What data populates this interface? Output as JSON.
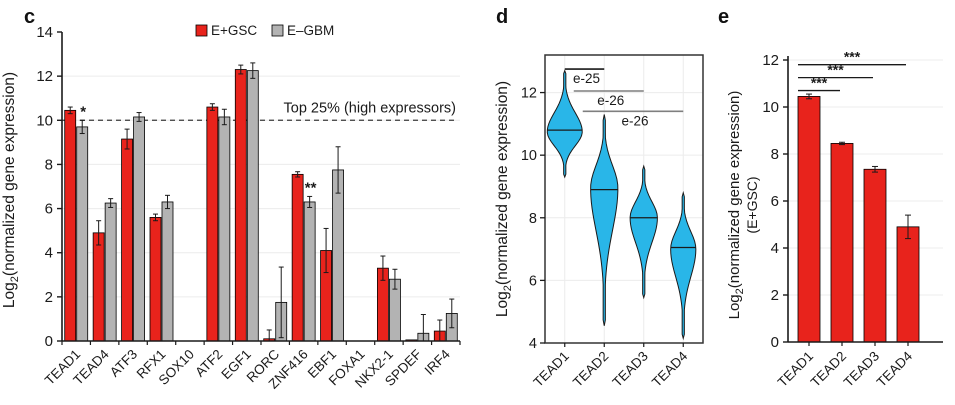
{
  "panels": {
    "c": {
      "label": "c"
    },
    "d": {
      "label": "d"
    },
    "e": {
      "label": "e"
    }
  },
  "colors": {
    "bar_red": "#e8231c",
    "bar_gray": "#b3b3b3",
    "violin_blue": "#29b6e8",
    "grid": "#ececec",
    "axis": "#1a1a1a",
    "sig_gray": "#7f7f7f",
    "threshold_line": "#3a3a3a"
  },
  "chart_data": [
    {
      "panel": "c",
      "type": "bar",
      "ylabel": {
        "pre": "Log",
        "sub": "2",
        "post": "(normalized gene expression)"
      },
      "ylim": [
        0,
        14
      ],
      "yticks": [
        0,
        2,
        4,
        6,
        8,
        10,
        12,
        14
      ],
      "grid": true,
      "legend": {
        "position": "top",
        "entries": [
          {
            "name": "E+GSC",
            "color": "bar_red"
          },
          {
            "name": "E–GBM",
            "color": "bar_gray"
          }
        ]
      },
      "threshold": {
        "value": 10,
        "label": "Top 25% (high expressors)"
      },
      "categories": [
        "TEAD1",
        "TEAD4",
        "ATF3",
        "RFX1",
        "SOX10",
        "ATF2",
        "EGF1",
        "RORC",
        "ZNF416",
        "EBF1",
        "FOXA1",
        "NKX2-1",
        "SPDEF",
        "IRF4"
      ],
      "series": [
        {
          "name": "E+GSC",
          "color": "bar_red",
          "values": [
            10.45,
            4.9,
            9.15,
            5.6,
            0,
            10.6,
            12.3,
            0.1,
            7.55,
            4.1,
            0,
            3.3,
            0.05,
            0.45
          ],
          "errors": [
            0.15,
            0.55,
            0.45,
            0.15,
            0,
            0.15,
            0.2,
            0.4,
            0.12,
            1.0,
            0,
            0.55,
            0,
            0.5
          ]
        },
        {
          "name": "E–GBM",
          "color": "bar_gray",
          "values": [
            9.7,
            6.25,
            10.15,
            6.3,
            0,
            10.15,
            12.25,
            1.75,
            6.3,
            7.75,
            0,
            2.8,
            0.35,
            1.25
          ],
          "errors": [
            0.3,
            0.2,
            0.2,
            0.3,
            0,
            0.35,
            0.35,
            1.6,
            0.25,
            1.05,
            0,
            0.45,
            0.85,
            0.65
          ]
        }
      ],
      "annotations": [
        {
          "category": "TEAD1",
          "series": "E–GBM",
          "text": "*"
        },
        {
          "category": "ZNF416",
          "series": "E–GBM",
          "text": "**"
        }
      ]
    },
    {
      "panel": "d",
      "type": "violin",
      "ylabel": {
        "pre": "Log",
        "sub": "2",
        "post": "(normalized gene expression)"
      },
      "ylim": [
        4,
        13.2
      ],
      "yticks": [
        4,
        6,
        8,
        10,
        12
      ],
      "grid": true,
      "categories": [
        "TEAD1",
        "TEAD2",
        "TEAD3",
        "TEAD4"
      ],
      "violins": [
        {
          "category": "TEAD1",
          "min": 9.3,
          "max": 12.7,
          "median": 10.8,
          "peak": 10.75,
          "rel_width": 1.0
        },
        {
          "category": "TEAD2",
          "min": 4.55,
          "max": 11.3,
          "median": 8.9,
          "peak": 8.95,
          "rel_width": 0.78
        },
        {
          "category": "TEAD3",
          "min": 5.45,
          "max": 9.65,
          "median": 8.0,
          "peak": 8.0,
          "rel_width": 0.78
        },
        {
          "category": "TEAD4",
          "min": 4.15,
          "max": 8.8,
          "median": 7.05,
          "peak": 7.0,
          "rel_width": 0.72
        }
      ],
      "significance": [
        {
          "label": "e-25",
          "from": 0,
          "to": 1,
          "y": 12.75,
          "color": "axis"
        },
        {
          "label": "e-26",
          "from": 0,
          "to": 2,
          "y": 12.05,
          "color": "sig_gray"
        },
        {
          "label": "e-26",
          "from": 0,
          "to": 3,
          "y": 11.4,
          "color": "sig_gray"
        }
      ]
    },
    {
      "panel": "e",
      "type": "bar",
      "ylabel": {
        "pre": "Log",
        "sub": "2",
        "post": "(normalized gene expression)",
        "line2": "(E+GSC)"
      },
      "ylim": [
        0,
        12
      ],
      "yticks": [
        0,
        2,
        4,
        6,
        8,
        10,
        12
      ],
      "grid": true,
      "categories": [
        "TEAD1",
        "TEAD2",
        "TEAD3",
        "TEAD4"
      ],
      "series": [
        {
          "name": "E+GSC",
          "color": "bar_red",
          "values": [
            10.45,
            8.45,
            7.35,
            4.9
          ],
          "errors": [
            0.1,
            0.05,
            0.12,
            0.5
          ]
        }
      ],
      "significance": [
        {
          "label": "***",
          "from": 0,
          "to": 1,
          "y": 10.7
        },
        {
          "label": "***",
          "from": 0,
          "to": 2,
          "y": 11.25
        },
        {
          "label": "***",
          "from": 0,
          "to": 3,
          "y": 11.8
        }
      ]
    }
  ]
}
